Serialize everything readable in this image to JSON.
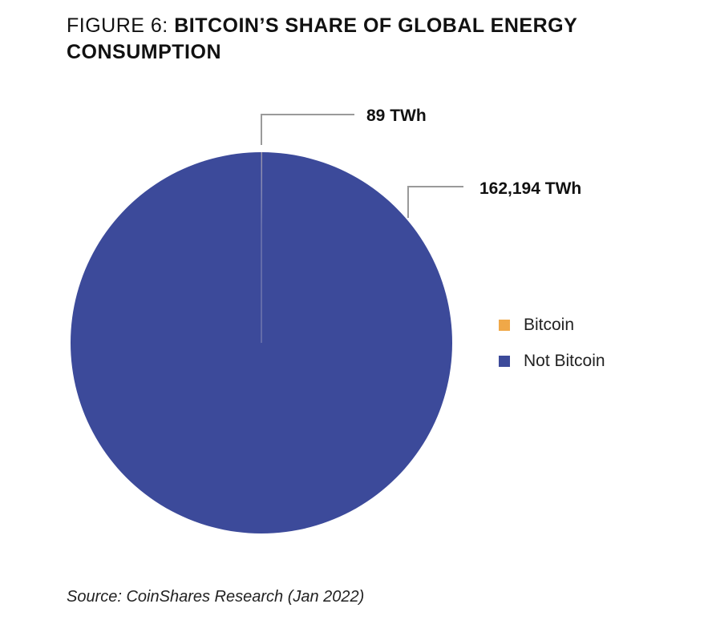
{
  "header": {
    "title_prefix": "FIGURE 6: ",
    "title_main": "BITCOIN’S SHARE OF GLOBAL ENERGY CONSUMPTION"
  },
  "chart_data": {
    "type": "pie",
    "slices": [
      {
        "name": "Bitcoin",
        "value": 89,
        "label": "89 TWh",
        "color": "#F0A848"
      },
      {
        "name": "Not Bitcoin",
        "value": 162194,
        "label": "162,194 TWh",
        "color": "#3C4A9A"
      }
    ],
    "unit": "TWh",
    "start_angle": "12 o'clock",
    "direction": "clockwise",
    "legend_position": "right"
  },
  "footer": {
    "source": "Source: CoinShares Research (Jan 2022)"
  }
}
